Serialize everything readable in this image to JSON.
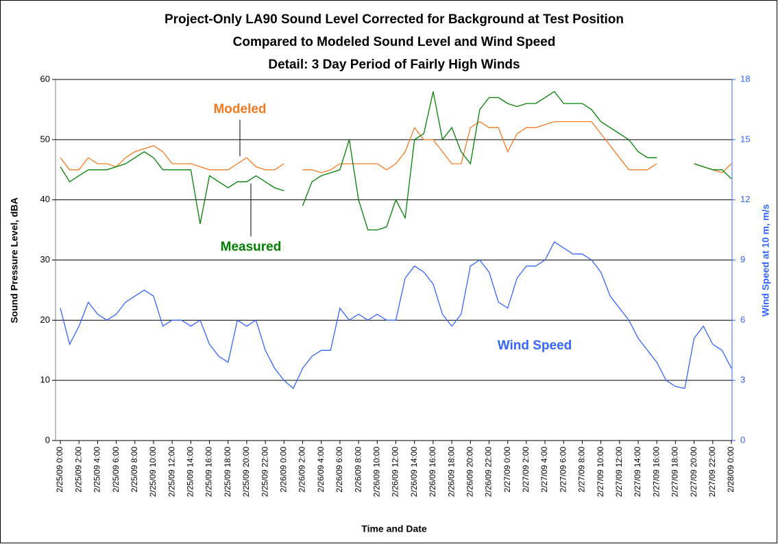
{
  "chart_data": {
    "type": "line",
    "title": [
      "Project-Only LA90 Sound Level Corrected for Background at Test Position",
      "Compared to Modeled Sound Level and Wind Speed",
      "Detail:  3 Day Period of Fairly High Winds"
    ],
    "x_label": "Time and Date",
    "y_label": "Sound Pressure Level, dBA",
    "y2_label": "Wind Speed at 10 m, m/s",
    "annotations": [
      "Modeled",
      "Measured",
      "Wind Speed"
    ],
    "categories": [
      "2/25/09 0:00",
      null,
      "2/25/09 2:00",
      null,
      "2/25/09 4:00",
      null,
      "2/25/09 6:00",
      null,
      "2/25/09 8:00",
      null,
      "2/25/09 10:00",
      null,
      "2/25/09 12:00",
      null,
      "2/25/09 14:00",
      null,
      "2/25/09 16:00",
      null,
      "2/25/09 18:00",
      null,
      "2/25/09 20:00",
      null,
      "2/25/09 22:00",
      null,
      "2/26/09 0:00",
      null,
      "2/26/09 2:00",
      null,
      "2/26/09 4:00",
      null,
      "2/26/09 6:00",
      null,
      "2/26/09 8:00",
      null,
      "2/26/09 10:00",
      null,
      "2/26/09 12:00",
      null,
      "2/26/09 14:00",
      null,
      "2/26/09 16:00",
      null,
      "2/26/09 18:00",
      null,
      "2/26/09 20:00",
      null,
      "2/26/09 22:00",
      null,
      "2/27/09 0:00",
      null,
      "2/27/09 2:00",
      null,
      "2/27/09 4:00",
      null,
      "2/27/09 6:00",
      null,
      "2/27/09 8:00",
      null,
      "2/27/09 10:00",
      null,
      "2/27/09 12:00",
      null,
      "2/27/09 14:00",
      null,
      "2/27/09 16:00",
      null,
      "2/27/09 18:00",
      null,
      "2/27/09 20:00",
      null,
      "2/27/09 22:00",
      null,
      "2/28/09 0:00"
    ],
    "series": [
      {
        "name": "Modeled",
        "color": "#f47a20",
        "axis": "y",
        "values": [
          47,
          45,
          45,
          47,
          46,
          46,
          45.5,
          47,
          48,
          48.5,
          49,
          48,
          46,
          46,
          46,
          45.5,
          45,
          45,
          45,
          46,
          47,
          45.5,
          45,
          45,
          46,
          null,
          45,
          45,
          44.5,
          45,
          46,
          46,
          46,
          46,
          46,
          45,
          46,
          48,
          52,
          50,
          50,
          48,
          46,
          46,
          52,
          53,
          52,
          52,
          48,
          51,
          52,
          52,
          52.5,
          53,
          53,
          53,
          53,
          53,
          51,
          49,
          47,
          45,
          45,
          45,
          46,
          null,
          null,
          null,
          46,
          45.5,
          45,
          44.5,
          46
        ]
      },
      {
        "name": "Measured",
        "color": "#008000",
        "axis": "y",
        "values": [
          45.5,
          43,
          44,
          45,
          45,
          45,
          45.5,
          46,
          47,
          48,
          47,
          45,
          45,
          45,
          45,
          36,
          44,
          43,
          42,
          43,
          43,
          44,
          43,
          42,
          41.5,
          null,
          39,
          43,
          44,
          44.5,
          45,
          50,
          40,
          35,
          35,
          35.5,
          40,
          37,
          50,
          51,
          58,
          50,
          52,
          48,
          46,
          55,
          57,
          57,
          56,
          55.5,
          56,
          56,
          57,
          58,
          56,
          56,
          56,
          55,
          53,
          52,
          51,
          50,
          48,
          47,
          47,
          null,
          null,
          null,
          46,
          45.5,
          45,
          45,
          43.5
        ]
      },
      {
        "name": "Wind Speed",
        "color": "#3366ff",
        "axis": "y2",
        "values": [
          6.6,
          4.8,
          5.7,
          6.9,
          6.3,
          6.0,
          6.3,
          6.9,
          7.2,
          7.5,
          7.2,
          5.7,
          6.0,
          6.0,
          5.7,
          6.0,
          4.8,
          4.2,
          3.9,
          6.0,
          5.7,
          6.0,
          4.5,
          3.6,
          3.0,
          2.6,
          3.6,
          4.2,
          4.5,
          4.5,
          6.6,
          6.0,
          6.3,
          6.0,
          6.3,
          6.0,
          6.0,
          8.1,
          8.7,
          8.4,
          7.8,
          6.3,
          5.7,
          6.3,
          8.7,
          9.0,
          8.4,
          6.9,
          6.6,
          8.1,
          8.7,
          8.7,
          9.0,
          9.9,
          9.6,
          9.3,
          9.3,
          9.0,
          8.4,
          7.2,
          6.6,
          6.0,
          5.1,
          4.5,
          3.9,
          3.0,
          2.7,
          2.6,
          5.1,
          5.7,
          4.8,
          4.5,
          3.6
        ]
      }
    ],
    "ylim": [
      0,
      60
    ],
    "yticks": [
      0,
      10,
      20,
      30,
      40,
      50,
      60
    ],
    "y2lim": [
      0,
      18
    ],
    "y2ticks": [
      0,
      3,
      6,
      9,
      12,
      15,
      18
    ],
    "grid": true
  }
}
